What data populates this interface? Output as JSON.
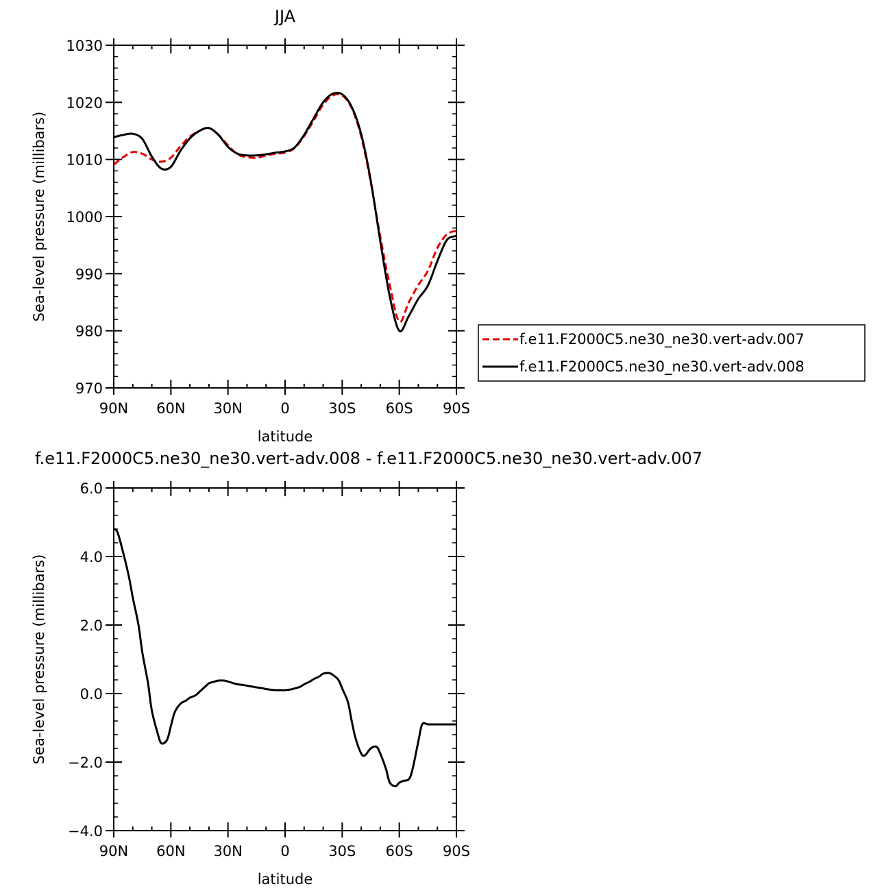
{
  "chart_data": [
    {
      "type": "line",
      "title": "JJA",
      "xlabel": "latitude",
      "ylabel": "Sea-level pressure (millibars)",
      "x_tick_labels": [
        "90N",
        "60N",
        "30N",
        "0",
        "30S",
        "60S",
        "90S"
      ],
      "y_tick_labels": [
        "970",
        "980",
        "990",
        "1000",
        "1010",
        "1020",
        "1030"
      ],
      "xlim": [
        90,
        -90
      ],
      "ylim": [
        970,
        1030
      ],
      "grid": false,
      "legend_position": "right",
      "x": [
        90,
        85,
        80,
        75,
        70,
        65,
        60,
        55,
        50,
        45,
        40,
        35,
        30,
        25,
        20,
        15,
        10,
        5,
        0,
        -5,
        -10,
        -15,
        -20,
        -25,
        -30,
        -35,
        -40,
        -45,
        -50,
        -55,
        -60,
        -65,
        -70,
        -75,
        -80,
        -85,
        -90
      ],
      "series": [
        {
          "name": "f.e11.F2000C5.ne30_ne30.vert-adv.007",
          "color": "#e00000",
          "dash": "dashed",
          "values": [
            1009.1,
            1010.4,
            1011.3,
            1011.0,
            1010.0,
            1009.6,
            1010.3,
            1012.3,
            1014.0,
            1015.0,
            1015.5,
            1014.3,
            1012.5,
            1010.9,
            1010.4,
            1010.3,
            1010.7,
            1011.0,
            1011.2,
            1012.0,
            1014.1,
            1016.8,
            1019.6,
            1021.2,
            1021.2,
            1019.0,
            1014.0,
            1006.0,
            996.5,
            988.0,
            981.6,
            985.0,
            988.0,
            990.5,
            994.5,
            996.9,
            997.5
          ]
        },
        {
          "name": "f.e11.F2000C5.ne30_ne30.vert-adv.008",
          "color": "#000000",
          "dash": "solid",
          "values": [
            1013.9,
            1014.3,
            1014.5,
            1013.6,
            1010.5,
            1008.4,
            1008.7,
            1011.5,
            1013.7,
            1015.0,
            1015.5,
            1014.3,
            1012.2,
            1011.0,
            1010.7,
            1010.7,
            1010.9,
            1011.2,
            1011.4,
            1012.1,
            1014.3,
            1017.2,
            1020.0,
            1021.5,
            1021.4,
            1019.2,
            1014.4,
            1006.3,
            995.7,
            986.0,
            980.0,
            982.6,
            985.6,
            987.9,
            992.2,
            995.9,
            996.6
          ]
        }
      ]
    },
    {
      "type": "line",
      "title": "f.e11.F2000C5.ne30_ne30.vert-adv.008 - f.e11.F2000C5.ne30_ne30.vert-adv.007",
      "xlabel": "latitude",
      "ylabel": "Sea-level pressure (millibars)",
      "x_tick_labels": [
        "90N",
        "60N",
        "30N",
        "0",
        "30S",
        "60S",
        "90S"
      ],
      "y_tick_labels": [
        "−4.0",
        "−2.0",
        "0.0",
        "2.0",
        "4.0",
        "6.0"
      ],
      "xlim": [
        90,
        -90
      ],
      "ylim": [
        -4,
        6
      ],
      "grid": false,
      "x": [
        90,
        88,
        85,
        82,
        80,
        77,
        75,
        72,
        70,
        67,
        65,
        62,
        60,
        58,
        55,
        52,
        50,
        47,
        45,
        42,
        40,
        37,
        35,
        32,
        30,
        27,
        25,
        22,
        20,
        17,
        15,
        12,
        10,
        7,
        5,
        2,
        0,
        -3,
        -5,
        -8,
        -10,
        -13,
        -15,
        -18,
        -20,
        -23,
        -25,
        -28,
        -30,
        -33,
        -35,
        -37,
        -40,
        -42,
        -45,
        -48,
        -50,
        -53,
        -55,
        -58,
        -60,
        -62,
        -65,
        -67,
        -70,
        -72,
        -75,
        -77,
        -80,
        -83,
        -85,
        -88,
        -90
      ],
      "series": [
        {
          "name": "",
          "color": "#000000",
          "dash": "solid",
          "values": [
            4.8,
            4.7,
            4.1,
            3.4,
            2.8,
            2.0,
            1.2,
            0.3,
            -0.5,
            -1.15,
            -1.45,
            -1.35,
            -0.95,
            -0.55,
            -0.3,
            -0.2,
            -0.12,
            -0.05,
            0.05,
            0.2,
            0.3,
            0.35,
            0.38,
            0.38,
            0.35,
            0.3,
            0.27,
            0.25,
            0.23,
            0.2,
            0.18,
            0.16,
            0.13,
            0.11,
            0.1,
            0.1,
            0.1,
            0.12,
            0.15,
            0.2,
            0.27,
            0.35,
            0.42,
            0.5,
            0.58,
            0.6,
            0.55,
            0.4,
            0.15,
            -0.25,
            -0.8,
            -1.3,
            -1.75,
            -1.8,
            -1.6,
            -1.55,
            -1.75,
            -2.2,
            -2.6,
            -2.7,
            -2.6,
            -2.55,
            -2.5,
            -2.2,
            -1.4,
            -0.9,
            -0.9,
            -0.9,
            -0.9,
            -0.9,
            -0.9,
            -0.9,
            -0.9
          ]
        }
      ]
    }
  ]
}
